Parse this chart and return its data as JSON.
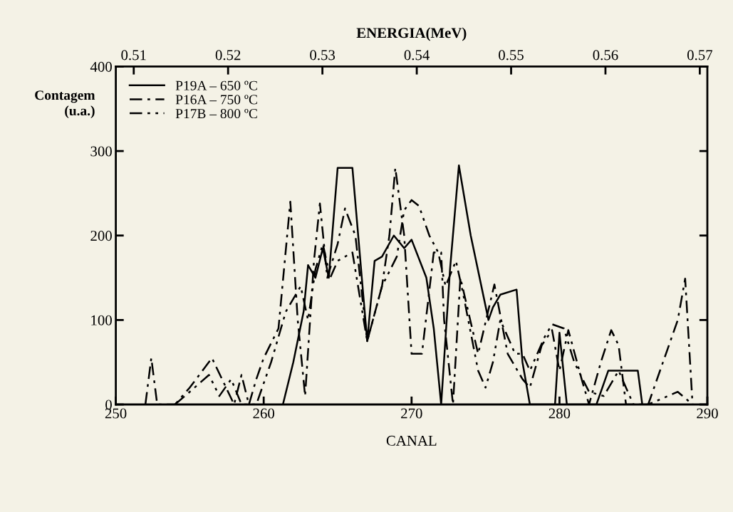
{
  "chart_data": {
    "type": "line",
    "xlabel": "CANAL",
    "ylabel": "Contagem\n(u.a.)",
    "x2label": "ENERGIA(MeV)",
    "xlim": [
      250,
      290
    ],
    "xticks": [
      250,
      260,
      270,
      280,
      290
    ],
    "ylim": [
      0,
      400
    ],
    "yticks": [
      0,
      100,
      200,
      300,
      400
    ],
    "x2lim": [
      0.5081,
      0.5708
    ],
    "x2ticks": [
      0.51,
      0.52,
      0.53,
      0.54,
      0.55,
      0.56,
      0.57
    ],
    "legend": "top left",
    "grid": false,
    "marker": "none",
    "series": [
      {
        "name": "P19A – 650 ºC",
        "color": "#000000",
        "line_style": "solid",
        "x": [
          261.3,
          262,
          262.7,
          263,
          263.5,
          264,
          264.4,
          265,
          266,
          267,
          267.5,
          268,
          268.8,
          269.5,
          270,
          271,
          271.5,
          272,
          272.6,
          273.2,
          274,
          275.2,
          275.5,
          276,
          277.1,
          277.5,
          278,
          279.7,
          280,
          280.5,
          282.5,
          283.3,
          285.3,
          285.6
        ],
        "values": [
          0,
          50,
          110,
          165,
          150,
          185,
          150,
          280,
          280,
          75,
          170,
          175,
          200,
          185,
          195,
          150,
          90,
          0,
          160,
          283,
          200,
          100,
          115,
          130,
          136,
          50,
          0,
          0,
          85,
          0,
          0,
          40,
          40,
          0
        ]
      },
      {
        "name": "P16A – 750 ºC",
        "color": "#000000",
        "line_style": "dashdot",
        "x": [
          252,
          252.4,
          252.8,
          254,
          255,
          256.5,
          258,
          258.5,
          259,
          259.5,
          260,
          261,
          261.8,
          262.3,
          262.8,
          263.4,
          263.8,
          264.3,
          265,
          265.5,
          266.2,
          267,
          268,
          268.5,
          268.9,
          269.5,
          270,
          270.7,
          271.5,
          272,
          272.2,
          272.8,
          273.3,
          274.5,
          275.6,
          276.5,
          277.5,
          278,
          278.8,
          279.5,
          280,
          280.6,
          281.5,
          282,
          282.8,
          283.5,
          284,
          284.5,
          286,
          287,
          288,
          288.5,
          289
        ],
        "values": [
          0,
          55,
          0,
          0,
          20,
          55,
          0,
          35,
          0,
          30,
          55,
          90,
          240,
          100,
          10,
          170,
          238,
          150,
          190,
          232,
          200,
          75,
          140,
          200,
          280,
          200,
          60,
          60,
          180,
          180,
          100,
          0,
          150,
          60,
          142,
          60,
          30,
          20,
          70,
          88,
          40,
          88,
          30,
          0,
          50,
          88,
          70,
          0,
          0,
          50,
          100,
          149,
          0
        ]
      },
      {
        "name": "P17B – 800 ºC",
        "color": "#000000",
        "line_style": "dashdotdot",
        "x": [
          254,
          255,
          256.3,
          257,
          257.8,
          258.5,
          259.5,
          260.5,
          261.5,
          262.5,
          263,
          263.5,
          264,
          264.5,
          265,
          266,
          267,
          268,
          269,
          269.5,
          270,
          270.5,
          271.2,
          271.8,
          272.3,
          273,
          273.5,
          274.5,
          275,
          275.5,
          276,
          277,
          277.5,
          278,
          279,
          279.5,
          280.3,
          281,
          282,
          283,
          284,
          285,
          286,
          288,
          289
        ],
        "values": [
          0,
          15,
          35,
          10,
          30,
          0,
          0,
          50,
          110,
          140,
          100,
          160,
          190,
          150,
          170,
          180,
          75,
          140,
          175,
          230,
          242,
          235,
          200,
          180,
          140,
          170,
          130,
          40,
          20,
          50,
          100,
          60,
          60,
          40,
          80,
          95,
          90,
          50,
          15,
          10,
          40,
          0,
          0,
          15,
          0
        ]
      }
    ]
  }
}
